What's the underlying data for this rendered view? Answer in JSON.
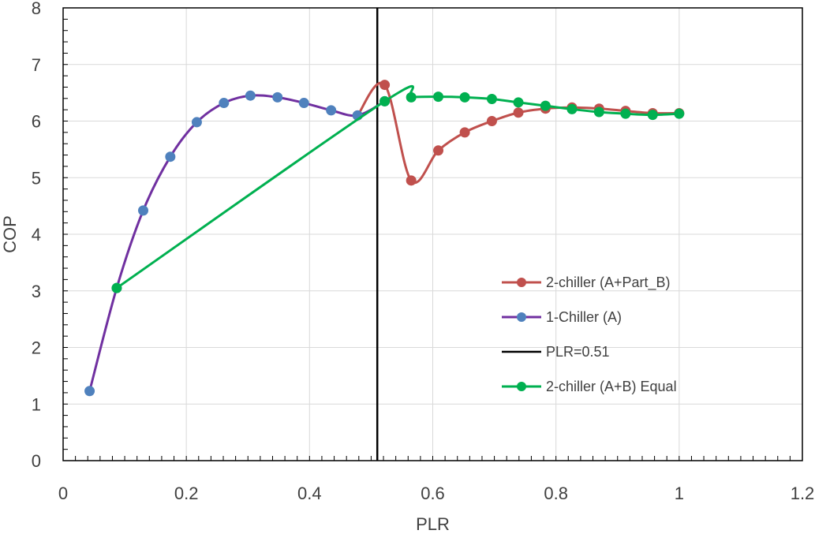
{
  "chart_data": {
    "type": "line",
    "xlabel": "PLR",
    "ylabel": "COP",
    "xlim": [
      0,
      1.2
    ],
    "ylim": [
      0,
      8
    ],
    "x_ticks": [
      "0",
      "0.2",
      "0.4",
      "0.6",
      "0.8",
      "1",
      "1.2"
    ],
    "y_ticks": [
      "0",
      "1",
      "2",
      "3",
      "4",
      "5",
      "6",
      "7",
      "8"
    ],
    "grid": true,
    "legend_position": "right-middle",
    "series": [
      {
        "name": "2-chiller (A+Part_B)",
        "color": "#c0504d",
        "smooth": true,
        "markers": true,
        "points": [
          [
            0.478,
            6.1
          ],
          [
            0.522,
            6.64
          ],
          [
            0.565,
            4.95
          ],
          [
            0.609,
            5.48
          ],
          [
            0.652,
            5.8
          ],
          [
            0.696,
            6.0
          ],
          [
            0.739,
            6.15
          ],
          [
            0.783,
            6.22
          ],
          [
            0.826,
            6.24
          ],
          [
            0.87,
            6.22
          ],
          [
            0.913,
            6.18
          ],
          [
            0.957,
            6.14
          ],
          [
            1.0,
            6.14
          ]
        ]
      },
      {
        "name": "1-Chiller (A)",
        "color": "#7030a0",
        "marker_color": "#4f81bd",
        "smooth": true,
        "markers": true,
        "points": [
          [
            0.043,
            1.23
          ],
          [
            0.087,
            3.05
          ],
          [
            0.13,
            4.42
          ],
          [
            0.174,
            5.37
          ],
          [
            0.217,
            5.98
          ],
          [
            0.261,
            6.32
          ],
          [
            0.304,
            6.45
          ],
          [
            0.348,
            6.42
          ],
          [
            0.391,
            6.32
          ],
          [
            0.435,
            6.19
          ],
          [
            0.478,
            6.1
          ],
          [
            0.522,
            6.35
          ]
        ]
      },
      {
        "name": "PLR=0.51",
        "color": "#000000",
        "markers": false,
        "points": [
          [
            0.51,
            0
          ],
          [
            0.51,
            8
          ]
        ]
      },
      {
        "name": "2-chiller (A+B) Equal",
        "color": "#00b050",
        "smooth": true,
        "markers": true,
        "points": [
          [
            0.087,
            3.05
          ],
          [
            0.522,
            6.35
          ],
          [
            0.565,
            6.42
          ],
          [
            0.609,
            6.43
          ],
          [
            0.652,
            6.42
          ],
          [
            0.696,
            6.39
          ],
          [
            0.739,
            6.33
          ],
          [
            0.783,
            6.27
          ],
          [
            0.826,
            6.21
          ],
          [
            0.87,
            6.16
          ],
          [
            0.913,
            6.13
          ],
          [
            0.957,
            6.11
          ],
          [
            1.0,
            6.13
          ]
        ]
      }
    ]
  }
}
